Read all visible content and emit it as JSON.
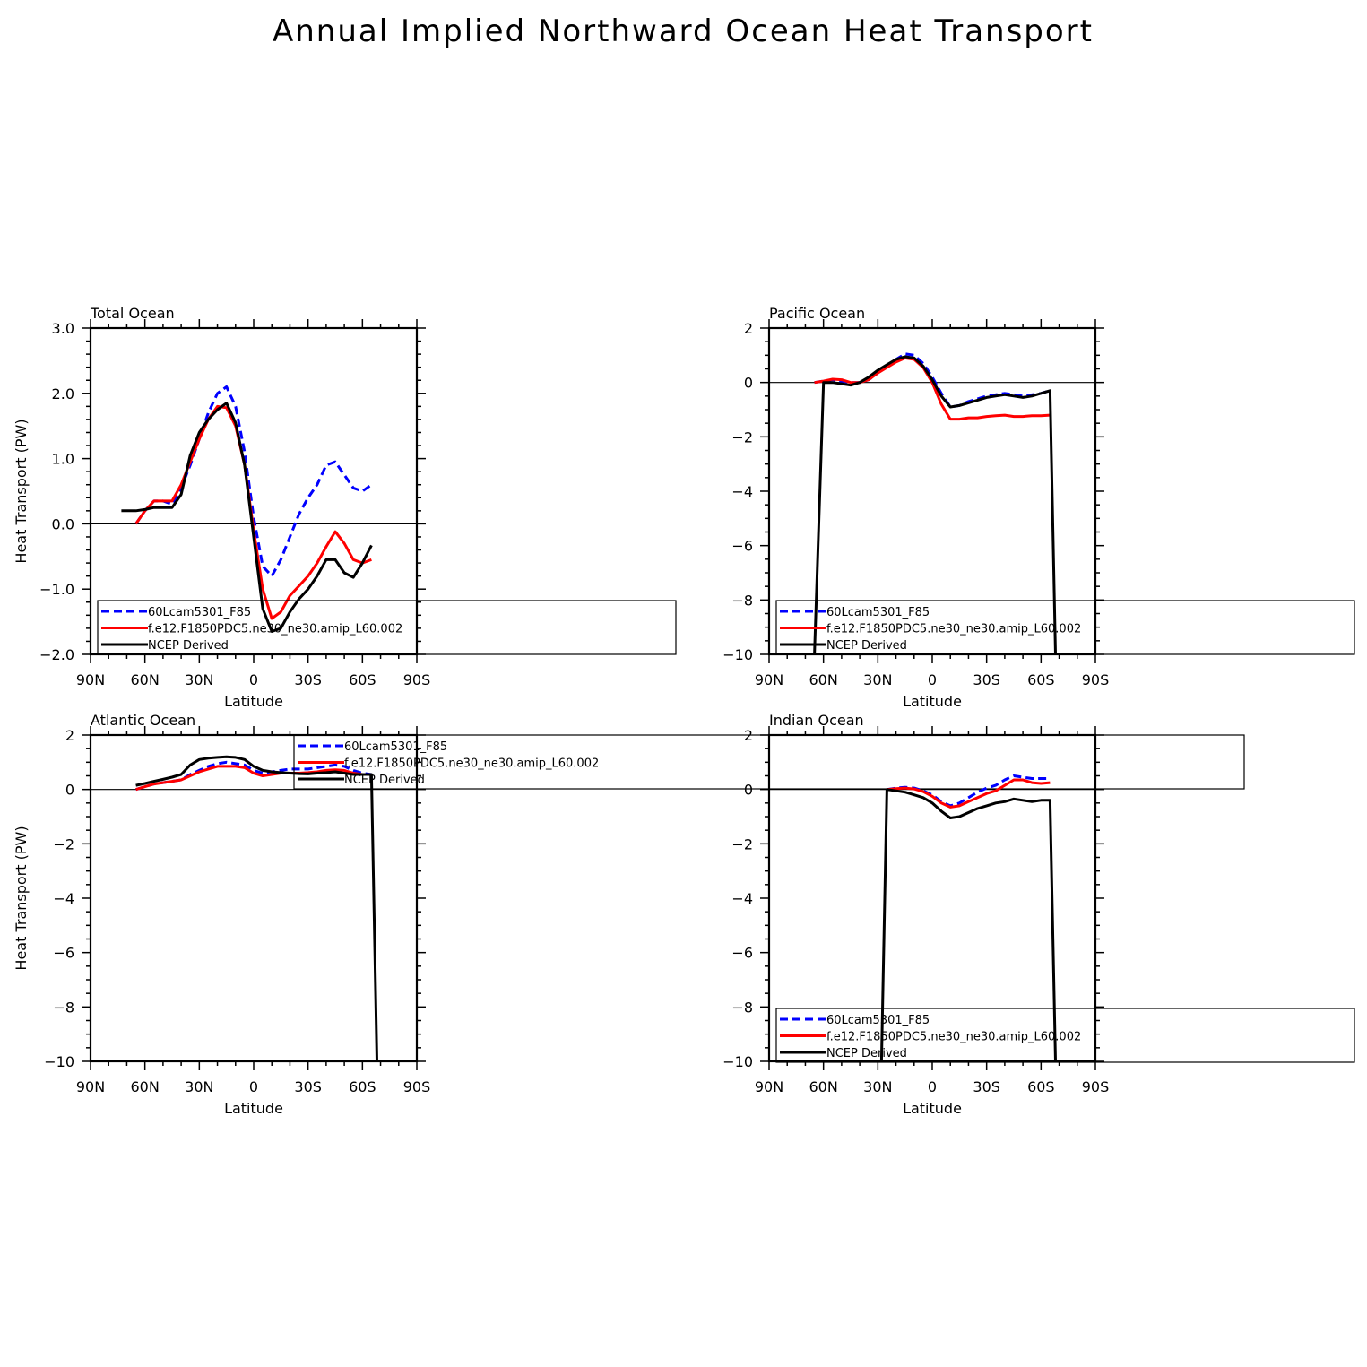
{
  "title": "Annual Implied Northward Ocean Heat Transport",
  "legend": [
    "60Lcam5301_F85",
    "f.e12.F1850PDC5.ne30_ne30.amip_L60.002",
    "NCEP Derived"
  ],
  "colors": {
    "series_a": "#0000ff",
    "series_b": "#ff0000",
    "series_c": "#000000"
  },
  "chart_data": [
    {
      "type": "line",
      "title": "Total Ocean",
      "xlabel": "Latitude",
      "ylabel": "Heat Transport (PW)",
      "xlim": [
        90,
        -90
      ],
      "ylim": [
        -2,
        3
      ],
      "xticks": [
        90,
        60,
        30,
        0,
        -30,
        -60,
        -90
      ],
      "xticklabels": [
        "90N",
        "60N",
        "30N",
        "0",
        "30S",
        "60S",
        "90S"
      ],
      "yticks": [
        -2,
        -1,
        0,
        1,
        2,
        3
      ],
      "yticklabels": [
        "−2.0",
        "−1.0",
        "0.0",
        "1.0",
        "2.0",
        "3.0"
      ],
      "legend_position": "bottom, overflowing right",
      "series": [
        {
          "name": "60Lcam5301_F85",
          "style": "dashed",
          "x": [
            65,
            60,
            55,
            50,
            45,
            40,
            35,
            30,
            25,
            20,
            15,
            10,
            5,
            0,
            -5,
            -10,
            -15,
            -20,
            -25,
            -30,
            -35,
            -40,
            -45,
            -50,
            -55,
            -60,
            -65
          ],
          "y": [
            0.0,
            0.2,
            0.35,
            0.35,
            0.3,
            0.55,
            0.9,
            1.3,
            1.7,
            2.0,
            2.1,
            1.8,
            1.1,
            0.1,
            -0.65,
            -0.8,
            -0.55,
            -0.2,
            0.15,
            0.4,
            0.6,
            0.9,
            0.95,
            0.75,
            0.55,
            0.5,
            0.6
          ]
        },
        {
          "name": "f.e12.F1850PDC5.ne30_ne30.amip_L60.002",
          "style": "solid",
          "x": [
            65,
            60,
            55,
            50,
            45,
            40,
            35,
            30,
            25,
            20,
            15,
            10,
            5,
            0,
            -5,
            -10,
            -15,
            -20,
            -25,
            -30,
            -35,
            -40,
            -45,
            -50,
            -55,
            -60,
            -65
          ],
          "y": [
            0.0,
            0.2,
            0.35,
            0.35,
            0.35,
            0.6,
            0.95,
            1.3,
            1.6,
            1.8,
            1.78,
            1.5,
            0.9,
            -0.1,
            -1.0,
            -1.45,
            -1.35,
            -1.1,
            -0.95,
            -0.8,
            -0.6,
            -0.35,
            -0.12,
            -0.3,
            -0.55,
            -0.6,
            -0.55
          ]
        },
        {
          "name": "NCEP Derived",
          "style": "solid",
          "x": [
            73,
            65,
            60,
            55,
            50,
            45,
            40,
            35,
            30,
            25,
            20,
            15,
            10,
            5,
            0,
            -5,
            -10,
            -15,
            -20,
            -25,
            -30,
            -35,
            -40,
            -45,
            -50,
            -55,
            -60,
            -65
          ],
          "y": [
            0.2,
            0.2,
            0.22,
            0.25,
            0.25,
            0.25,
            0.45,
            1.05,
            1.4,
            1.6,
            1.75,
            1.85,
            1.55,
            0.9,
            -0.2,
            -1.3,
            -1.65,
            -1.6,
            -1.35,
            -1.15,
            -1.0,
            -0.8,
            -0.55,
            -0.55,
            -0.75,
            -0.82,
            -0.6,
            -0.33
          ]
        }
      ]
    },
    {
      "type": "line",
      "title": "Pacific Ocean",
      "xlabel": "Latitude",
      "ylabel": "",
      "xlim": [
        90,
        -90
      ],
      "ylim": [
        -10,
        2
      ],
      "xticks": [
        90,
        60,
        30,
        0,
        -30,
        -60,
        -90
      ],
      "xticklabels": [
        "90N",
        "60N",
        "30N",
        "0",
        "30S",
        "60S",
        "90S"
      ],
      "yticks": [
        -10,
        -8,
        -6,
        -4,
        -2,
        0,
        2
      ],
      "yticklabels": [
        "−10",
        "−8",
        "−6",
        "−4",
        "−2",
        "0",
        "2"
      ],
      "legend_position": "bottom, overflowing right",
      "series": [
        {
          "name": "60Lcam5301_F85",
          "style": "dashed",
          "x": [
            65,
            60,
            55,
            50,
            45,
            40,
            35,
            30,
            25,
            20,
            15,
            10,
            5,
            0,
            -5,
            -10,
            -15,
            -20,
            -25,
            -30,
            -35,
            -40,
            -45,
            -50,
            -55,
            -60,
            -65
          ],
          "y": [
            0.0,
            0.05,
            0.1,
            0.05,
            0.0,
            0.0,
            0.1,
            0.35,
            0.6,
            0.85,
            1.05,
            1.0,
            0.7,
            0.2,
            -0.4,
            -0.9,
            -0.85,
            -0.7,
            -0.6,
            -0.5,
            -0.45,
            -0.4,
            -0.45,
            -0.5,
            -0.45,
            -0.4,
            -0.3
          ]
        },
        {
          "name": "f.e12.F1850PDC5.ne30_ne30.amip_L60.002",
          "style": "solid",
          "x": [
            65,
            60,
            55,
            50,
            45,
            40,
            35,
            30,
            25,
            20,
            15,
            10,
            5,
            0,
            -5,
            -10,
            -15,
            -20,
            -25,
            -30,
            -35,
            -40,
            -45,
            -50,
            -55,
            -60,
            -65
          ],
          "y": [
            0.0,
            0.05,
            0.12,
            0.1,
            0.0,
            0.0,
            0.1,
            0.35,
            0.55,
            0.75,
            0.9,
            0.85,
            0.55,
            0.0,
            -0.8,
            -1.35,
            -1.35,
            -1.3,
            -1.3,
            -1.25,
            -1.22,
            -1.2,
            -1.25,
            -1.25,
            -1.22,
            -1.22,
            -1.2
          ]
        },
        {
          "name": "NCEP Derived",
          "style": "solid",
          "x": [
            73,
            70,
            65,
            60,
            55,
            50,
            45,
            40,
            35,
            30,
            25,
            20,
            15,
            10,
            5,
            0,
            -5,
            -10,
            -15,
            -20,
            -25,
            -30,
            -35,
            -40,
            -45,
            -50,
            -55,
            -60,
            -65,
            -68,
            -71
          ],
          "y": [
            -10,
            -10,
            -10,
            0.0,
            0.0,
            -0.05,
            -0.1,
            0.0,
            0.2,
            0.45,
            0.65,
            0.85,
            0.95,
            0.9,
            0.6,
            0.1,
            -0.5,
            -0.9,
            -0.85,
            -0.75,
            -0.65,
            -0.55,
            -0.5,
            -0.45,
            -0.5,
            -0.55,
            -0.5,
            -0.4,
            -0.3,
            -10,
            -10
          ]
        }
      ]
    },
    {
      "type": "line",
      "title": "Atlantic Ocean",
      "xlabel": "Latitude",
      "ylabel": "Heat Transport (PW)",
      "xlim": [
        90,
        -90
      ],
      "ylim": [
        -10,
        2
      ],
      "xticks": [
        90,
        60,
        30,
        0,
        -30,
        -60,
        -90
      ],
      "xticklabels": [
        "90N",
        "60N",
        "30N",
        "0",
        "30S",
        "60S",
        "90S"
      ],
      "yticks": [
        -10,
        -8,
        -6,
        -4,
        -2,
        0,
        2
      ],
      "yticklabels": [
        "−10",
        "−8",
        "−6",
        "−4",
        "−2",
        "0",
        "2"
      ],
      "legend_position": "top-right, overflowing right",
      "series": [
        {
          "name": "60Lcam5301_F85",
          "style": "dashed",
          "x": [
            65,
            60,
            55,
            50,
            45,
            40,
            35,
            30,
            25,
            20,
            15,
            10,
            5,
            0,
            -5,
            -10,
            -15,
            -20,
            -25,
            -30,
            -35,
            -40,
            -45,
            -50,
            -55,
            -60,
            -65
          ],
          "y": [
            0.0,
            0.1,
            0.2,
            0.25,
            0.3,
            0.35,
            0.55,
            0.7,
            0.85,
            0.95,
            1.0,
            0.95,
            0.9,
            0.7,
            0.6,
            0.65,
            0.7,
            0.75,
            0.75,
            0.75,
            0.8,
            0.85,
            0.9,
            0.85,
            0.7,
            0.6,
            0.55
          ]
        },
        {
          "name": "f.e12.F1850PDC5.ne30_ne30.amip_L60.002",
          "style": "solid",
          "x": [
            65,
            60,
            55,
            50,
            45,
            40,
            35,
            30,
            25,
            20,
            15,
            10,
            5,
            0,
            -5,
            -10,
            -15,
            -20,
            -25,
            -30,
            -35,
            -40,
            -45,
            -50,
            -55,
            -60,
            -65
          ],
          "y": [
            0.0,
            0.1,
            0.2,
            0.25,
            0.3,
            0.35,
            0.5,
            0.65,
            0.75,
            0.85,
            0.85,
            0.85,
            0.8,
            0.6,
            0.5,
            0.55,
            0.6,
            0.6,
            0.6,
            0.62,
            0.65,
            0.7,
            0.72,
            0.7,
            0.6,
            0.55,
            0.55
          ]
        },
        {
          "name": "NCEP Derived",
          "style": "solid",
          "x": [
            65,
            60,
            55,
            50,
            45,
            40,
            35,
            30,
            25,
            20,
            15,
            10,
            5,
            0,
            -5,
            -10,
            -15,
            -20,
            -25,
            -30,
            -35,
            -40,
            -45,
            -50,
            -55,
            -60,
            -65,
            -68,
            -71
          ],
          "y": [
            0.15,
            0.22,
            0.3,
            0.37,
            0.45,
            0.55,
            0.9,
            1.1,
            1.15,
            1.18,
            1.2,
            1.18,
            1.1,
            0.85,
            0.7,
            0.65,
            0.62,
            0.6,
            0.58,
            0.57,
            0.6,
            0.62,
            0.65,
            0.6,
            0.55,
            0.55,
            0.55,
            -10,
            -10
          ]
        }
      ]
    },
    {
      "type": "line",
      "title": "Indian Ocean",
      "xlabel": "Latitude",
      "ylabel": "",
      "xlim": [
        90,
        -90
      ],
      "ylim": [
        -10,
        2
      ],
      "xticks": [
        90,
        60,
        30,
        0,
        -30,
        -60,
        -90
      ],
      "xticklabels": [
        "90N",
        "60N",
        "30N",
        "0",
        "30S",
        "60S",
        "90S"
      ],
      "yticks": [
        -10,
        -8,
        -6,
        -4,
        -2,
        0,
        2
      ],
      "yticklabels": [
        "−10",
        "−8",
        "−6",
        "−4",
        "−2",
        "0",
        "2"
      ],
      "legend_position": "bottom, overflowing right",
      "series": [
        {
          "name": "60Lcam5301_F85",
          "style": "dashed",
          "x": [
            25,
            20,
            15,
            10,
            5,
            0,
            -5,
            -10,
            -15,
            -20,
            -25,
            -30,
            -35,
            -40,
            -45,
            -50,
            -55,
            -60,
            -65
          ],
          "y": [
            0.0,
            0.05,
            0.08,
            0.05,
            -0.05,
            -0.2,
            -0.45,
            -0.6,
            -0.5,
            -0.3,
            -0.1,
            0.05,
            0.15,
            0.35,
            0.5,
            0.45,
            0.4,
            0.4,
            0.4
          ]
        },
        {
          "name": "f.e12.F1850PDC5.ne30_ne30.amip_L60.002",
          "style": "solid",
          "x": [
            25,
            20,
            15,
            10,
            5,
            0,
            -5,
            -10,
            -15,
            -20,
            -25,
            -30,
            -35,
            -40,
            -45,
            -50,
            -55,
            -60,
            -65
          ],
          "y": [
            0.0,
            0.03,
            0.05,
            0.02,
            -0.08,
            -0.25,
            -0.5,
            -0.65,
            -0.6,
            -0.45,
            -0.3,
            -0.15,
            -0.05,
            0.15,
            0.35,
            0.35,
            0.25,
            0.22,
            0.25
          ]
        },
        {
          "name": "NCEP Derived",
          "style": "solid",
          "x": [
            30,
            28,
            25,
            20,
            15,
            10,
            5,
            0,
            -5,
            -10,
            -15,
            -20,
            -25,
            -30,
            -35,
            -40,
            -45,
            -50,
            -55,
            -60,
            -65,
            -68,
            -71
          ],
          "y": [
            -10,
            -10,
            0.0,
            -0.05,
            -0.1,
            -0.2,
            -0.3,
            -0.5,
            -0.8,
            -1.05,
            -1.0,
            -0.85,
            -0.7,
            -0.6,
            -0.5,
            -0.45,
            -0.35,
            -0.4,
            -0.45,
            -0.4,
            -0.4,
            -10,
            -10
          ]
        }
      ]
    }
  ]
}
